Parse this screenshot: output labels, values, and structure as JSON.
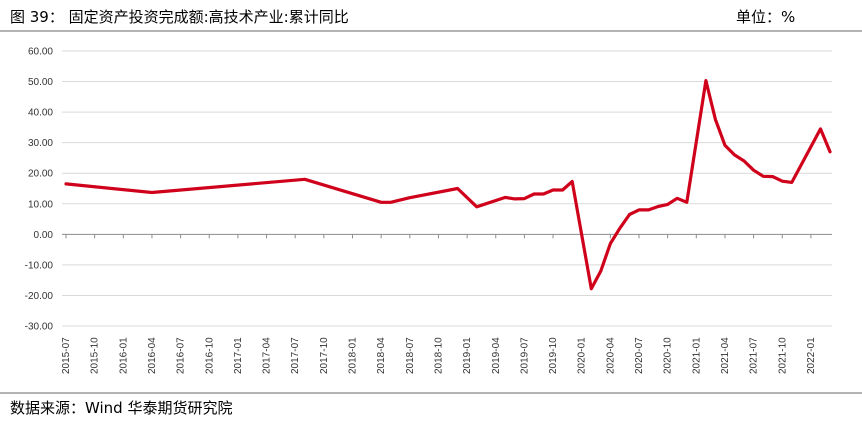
{
  "header": {
    "title": "图 39：    固定资产投资完成额:高技术产业:累计同比",
    "unit": "单位：%"
  },
  "footer": {
    "source": "数据来源：Wind   华泰期货研究院"
  },
  "colors": {
    "line": "#d0021b",
    "grid": "#d9d9d9",
    "axis": "#8c8c8c"
  },
  "chart_data": {
    "type": "line",
    "title": "固定资产投资完成额:高技术产业:累计同比",
    "ylim": [
      -30,
      60
    ],
    "yticks": [
      "60.00",
      "50.00",
      "40.00",
      "30.00",
      "20.00",
      "10.00",
      "0.00",
      "-10.00",
      "-20.00",
      "-30.00"
    ],
    "xtick_labels": [
      "2015-07",
      "2015-10",
      "2016-01",
      "2016-04",
      "2016-07",
      "2016-10",
      "2017-01",
      "2017-04",
      "2017-07",
      "2017-10",
      "2018-01",
      "2018-04",
      "2018-07",
      "2018-10",
      "2019-01",
      "2019-04",
      "2019-07",
      "2019-10",
      "2020-01",
      "2020-04",
      "2020-07",
      "2020-10",
      "2021-01",
      "2021-04",
      "2021-07",
      "2021-10",
      "2022-01"
    ],
    "x": [
      "2015-07",
      "2016-04",
      "2017-08",
      "2018-04",
      "2018-05",
      "2018-07",
      "2018-12",
      "2019-02",
      "2019-05",
      "2019-06",
      "2019-07",
      "2019-08",
      "2019-09",
      "2019-10",
      "2019-11",
      "2019-12",
      "2020-02",
      "2020-03",
      "2020-04",
      "2020-05",
      "2020-06",
      "2020-07",
      "2020-08",
      "2020-09",
      "2020-10",
      "2020-11",
      "2020-12",
      "2021-02",
      "2021-03",
      "2021-04",
      "2021-05",
      "2021-06",
      "2021-07",
      "2021-08",
      "2021-09",
      "2021-10",
      "2021-11",
      "2022-02",
      "2022-03"
    ],
    "y": [
      16.5,
      13.7,
      18.0,
      10.5,
      10.5,
      12.0,
      15.0,
      9.0,
      12.1,
      11.6,
      11.7,
      13.2,
      13.2,
      14.5,
      14.5,
      17.3,
      -17.8,
      -12.0,
      -3.0,
      2.0,
      6.5,
      8.0,
      8.0,
      9.1,
      9.8,
      11.8,
      10.5,
      50.3,
      37.6,
      29.1,
      26.0,
      24.0,
      21.0,
      19.0,
      18.9,
      17.4,
      17.0,
      34.5,
      27.0
    ]
  }
}
